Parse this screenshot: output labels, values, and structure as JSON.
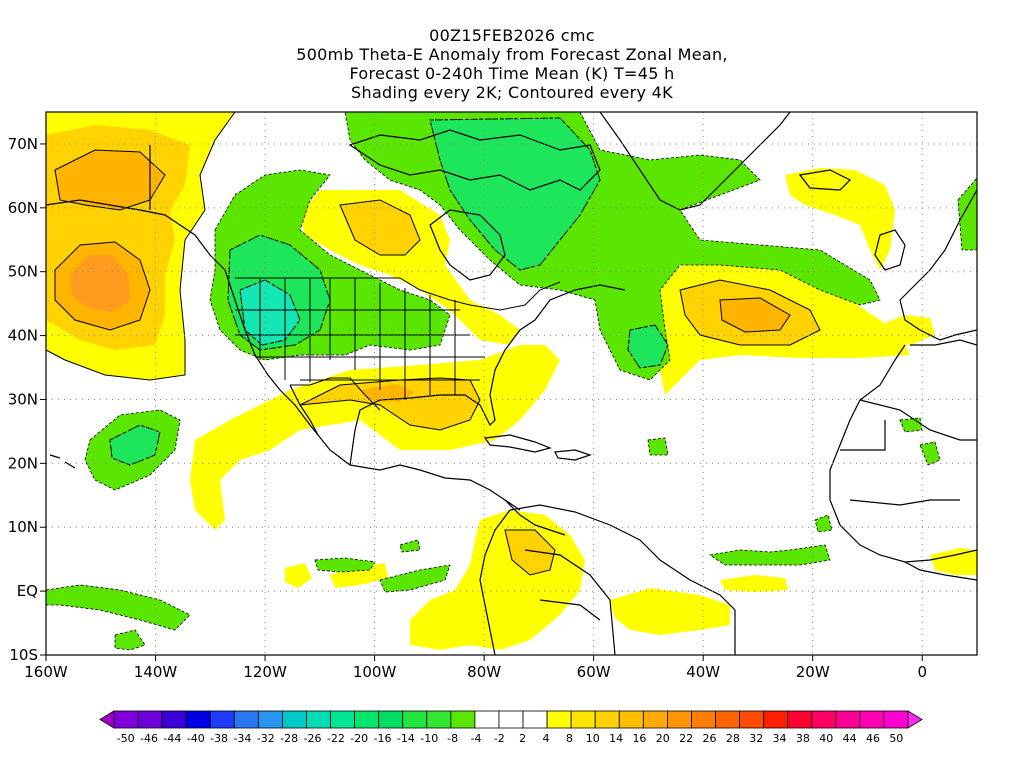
{
  "title": {
    "line1": "00Z15FEB2026 cmc",
    "line2": "500mb Theta-E Anomaly from Forecast Zonal Mean,",
    "line3": "Forecast 0-240h Time Mean (K) T=45 h",
    "line4": "Shading every 2K; Contoured every 4K"
  },
  "axes": {
    "lon_ticks": [
      "160W",
      "140W",
      "120W",
      "100W",
      "80W",
      "60W",
      "40W",
      "20W",
      "0"
    ],
    "lat_ticks": [
      "70N",
      "60N",
      "50N",
      "40N",
      "30N",
      "20N",
      "10N",
      "EQ",
      "10S"
    ],
    "lon_range": [
      -160,
      10
    ],
    "lat_range": [
      -10,
      75
    ]
  },
  "colorbar": {
    "labels": [
      "-50",
      "-46",
      "-44",
      "-40",
      "-38",
      "-34",
      "-32",
      "-28",
      "-26",
      "-22",
      "-20",
      "-16",
      "-14",
      "-10",
      "-8",
      "-4",
      "-2",
      "2",
      "4",
      "8",
      "10",
      "14",
      "16",
      "20",
      "22",
      "26",
      "28",
      "32",
      "34",
      "38",
      "40",
      "44",
      "46",
      "50"
    ],
    "colors": [
      "#a000c8",
      "#8200dc",
      "#6e00dc",
      "#3c00dc",
      "#0000e6",
      "#1e3cff",
      "#2878f0",
      "#2896f0",
      "#00c8c8",
      "#00dcb4",
      "#00e696",
      "#00e66e",
      "#00dc64",
      "#1ee63c",
      "#32e632",
      "#5ae600",
      "#ffffff",
      "#ffffff",
      "#ffffff",
      "#ffff00",
      "#ffe600",
      "#ffd200",
      "#ffbe00",
      "#ffaa00",
      "#ff9600",
      "#ff7d00",
      "#ff6400",
      "#ff4b00",
      "#ff1e00",
      "#ff0032",
      "#ff0064",
      "#ff0096",
      "#ff00b4",
      "#ff00d2",
      "#ff28f0"
    ]
  },
  "colors": {
    "pos_light": "#ffff00",
    "pos_mid": "#ffd200",
    "pos_strong": "#ffb400",
    "pos_max": "#ff9b1e",
    "neg_light": "#5ae600",
    "neg_mid": "#1ee65a",
    "neg_strong": "#14e6b4",
    "neg_max": "#28f0dc"
  }
}
